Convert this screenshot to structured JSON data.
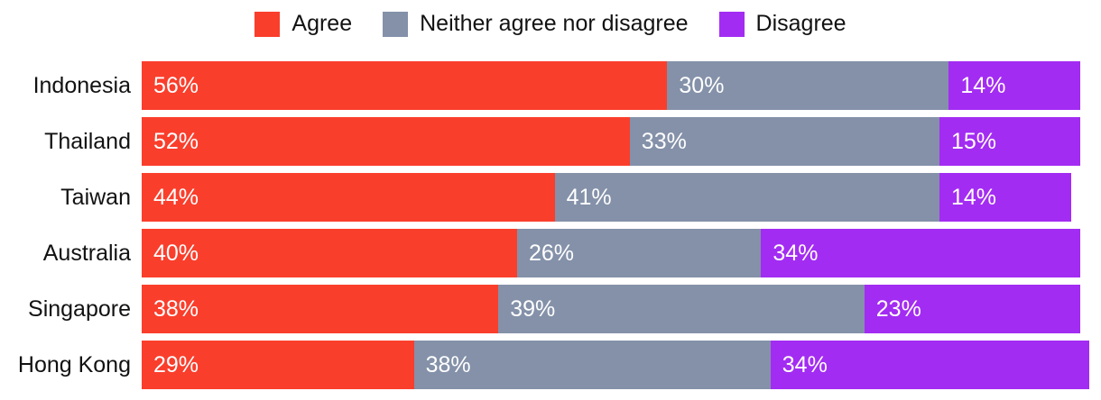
{
  "legend": {
    "items": [
      {
        "label": "Agree",
        "color": "#FA3E2C"
      },
      {
        "label": "Neither agree nor disagree",
        "color": "#8491A9"
      },
      {
        "label": "Disagree",
        "color": "#A32CF2"
      }
    ]
  },
  "chart_data": {
    "type": "bar",
    "orientation": "horizontal",
    "stacked": true,
    "normalized": false,
    "categories": [
      "Indonesia",
      "Thailand",
      "Taiwan",
      "Australia",
      "Singapore",
      "Hong Kong"
    ],
    "series": [
      {
        "name": "Agree",
        "color": "#FA3E2C",
        "values": [
          56,
          52,
          44,
          40,
          38,
          29
        ]
      },
      {
        "name": "Neither agree nor disagree",
        "color": "#8491A9",
        "values": [
          30,
          33,
          41,
          26,
          39,
          38
        ]
      },
      {
        "name": "Disagree",
        "color": "#A32CF2",
        "values": [
          14,
          15,
          14,
          34,
          23,
          34
        ]
      }
    ],
    "value_suffix": "%",
    "value_label_position": "inside-start",
    "value_label_color": "#ffffff",
    "category_label_color": "#121212",
    "axis": "none",
    "grid": false,
    "legend_position": "top-center",
    "background": "#ffffff"
  }
}
